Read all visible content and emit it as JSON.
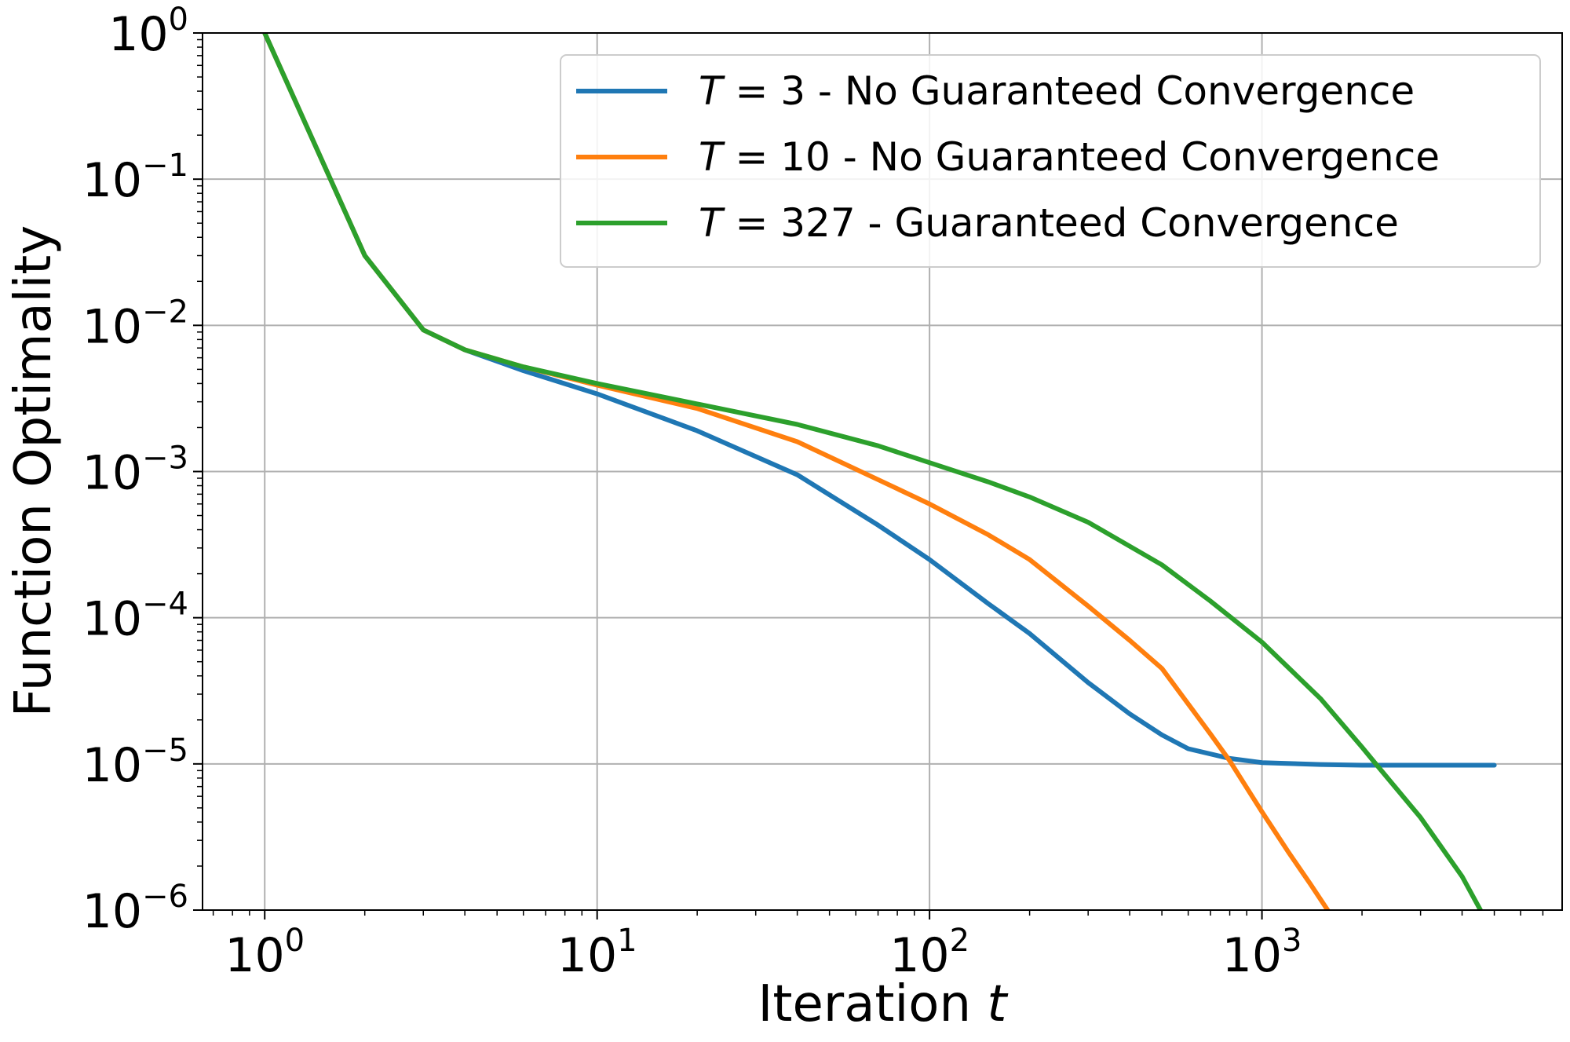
{
  "chart_data": {
    "type": "line",
    "xlabel": "Iteration t",
    "ylabel": "Function Optimality",
    "x_scale": "log",
    "y_scale": "log",
    "xlim": [
      0.65,
      8000
    ],
    "ylim": [
      1e-06,
      1
    ],
    "grid": true,
    "legend_position": "top-right",
    "x_ticks": [
      {
        "value": 1,
        "base": "10",
        "exp": "0"
      },
      {
        "value": 10,
        "base": "10",
        "exp": "1"
      },
      {
        "value": 100,
        "base": "10",
        "exp": "2"
      },
      {
        "value": 1000,
        "base": "10",
        "exp": "3"
      }
    ],
    "y_ticks": [
      {
        "value": 1,
        "base": "10",
        "exp": "0"
      },
      {
        "value": 0.1,
        "base": "10",
        "exp": "−1"
      },
      {
        "value": 0.01,
        "base": "10",
        "exp": "−2"
      },
      {
        "value": 0.001,
        "base": "10",
        "exp": "−3"
      },
      {
        "value": 0.0001,
        "base": "10",
        "exp": "−4"
      },
      {
        "value": 1e-05,
        "base": "10",
        "exp": "−5"
      },
      {
        "value": 1e-06,
        "base": "10",
        "exp": "−6"
      }
    ],
    "series": [
      {
        "name": "T = 3 - No Guaranteed Convergence",
        "name_var": "T",
        "name_rest": " = 3 - No Guaranteed Convergence",
        "color": "#1f77b4",
        "x": [
          1,
          2,
          3,
          4,
          6,
          10,
          20,
          40,
          70,
          100,
          150,
          200,
          300,
          400,
          500,
          600,
          800,
          1000,
          1500,
          2000,
          3000,
          5000
        ],
        "y": [
          1,
          0.03,
          0.0093,
          0.0068,
          0.0049,
          0.0034,
          0.0019,
          0.00095,
          0.00043,
          0.00025,
          0.000125,
          7.8e-05,
          3.6e-05,
          2.2e-05,
          1.58e-05,
          1.27e-05,
          1.09e-05,
          1.02e-05,
          9.9e-06,
          9.8e-06,
          9.8e-06,
          9.8e-06
        ]
      },
      {
        "name": "T = 10 - No Guaranteed Convergence",
        "name_var": "T",
        "name_rest": " = 10 - No Guaranteed Convergence",
        "color": "#ff7f0e",
        "x": [
          1,
          2,
          3,
          4,
          6,
          10,
          20,
          40,
          70,
          100,
          150,
          200,
          300,
          400,
          500,
          700,
          800,
          1000,
          1200,
          1400,
          1600
        ],
        "y": [
          1,
          0.03,
          0.0093,
          0.0068,
          0.0052,
          0.0039,
          0.0027,
          0.0016,
          0.00088,
          0.0006,
          0.00037,
          0.00025,
          0.00012,
          7e-05,
          4.5e-05,
          1.6e-05,
          1.05e-05,
          4.7e-06,
          2.5e-06,
          1.5e-06,
          9.5e-07
        ]
      },
      {
        "name": "T = 327 - Guaranteed Convergence",
        "name_var": "T",
        "name_rest": " = 327 - Guaranteed Convergence",
        "color": "#2ca02c",
        "x": [
          1,
          2,
          3,
          4,
          6,
          10,
          20,
          40,
          70,
          100,
          150,
          200,
          300,
          500,
          700,
          1000,
          1500,
          2000,
          2200,
          3000,
          4000,
          4600
        ],
        "y": [
          1,
          0.03,
          0.0093,
          0.0068,
          0.0052,
          0.004,
          0.0029,
          0.0021,
          0.0015,
          0.00115,
          0.00085,
          0.00067,
          0.00045,
          0.00023,
          0.00013,
          6.8e-05,
          2.8e-05,
          1.3e-05,
          1e-05,
          4.3e-06,
          1.7e-06,
          9.5e-07
        ]
      }
    ]
  }
}
